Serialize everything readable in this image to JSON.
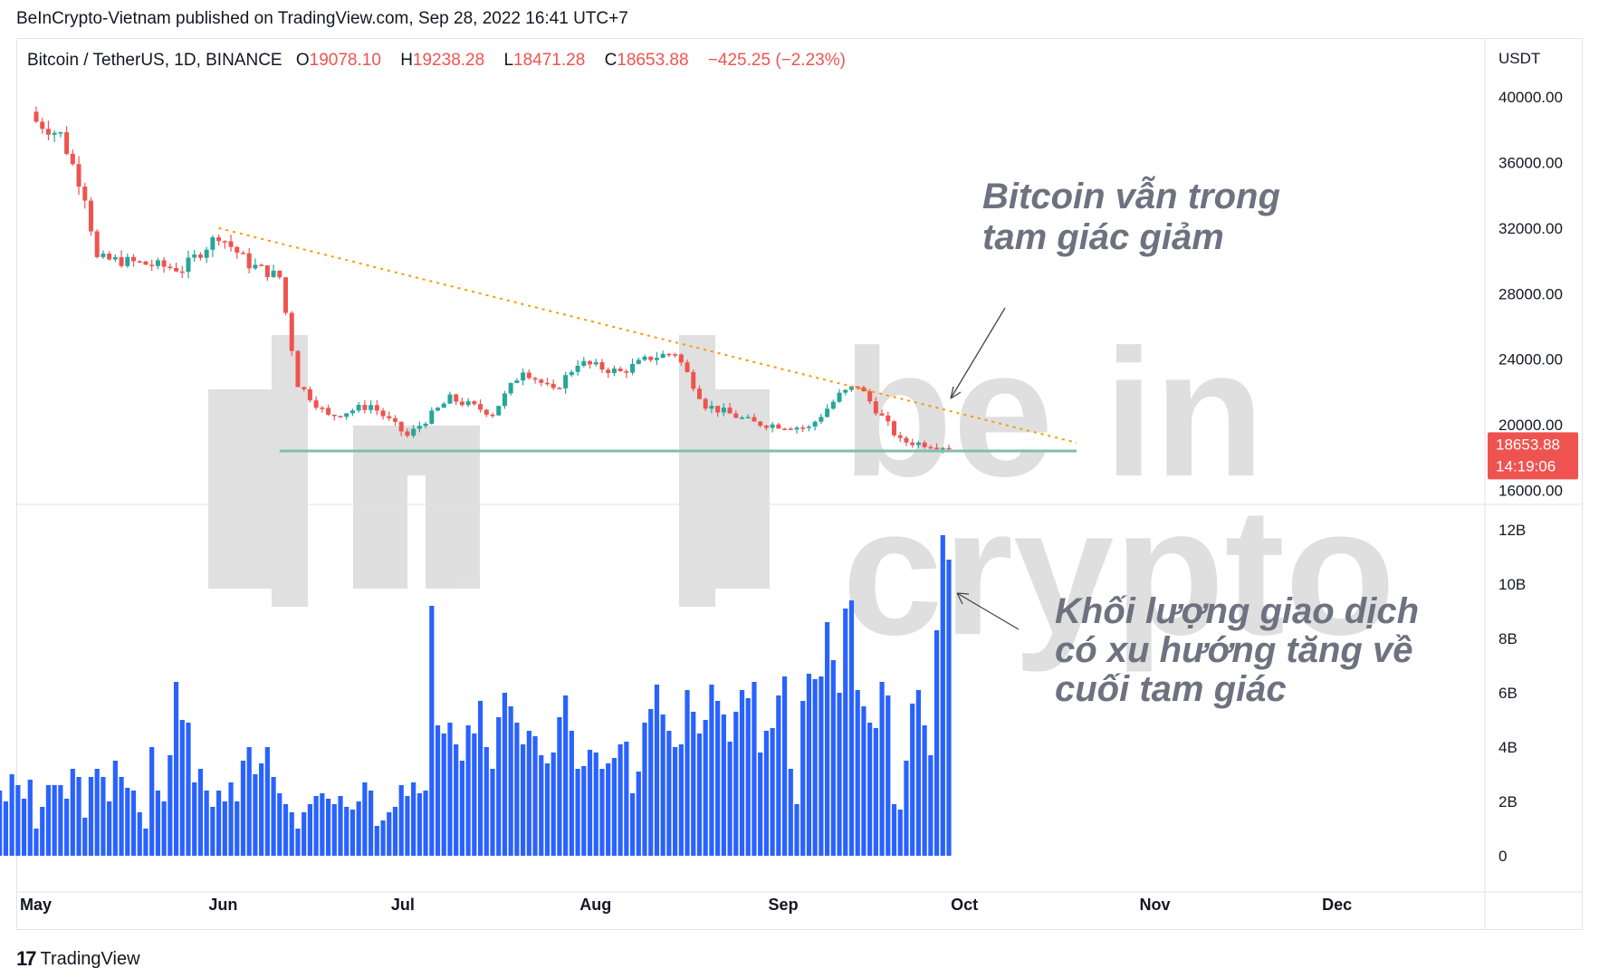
{
  "header": {
    "publisher_line": "BeInCrypto-Vietnam published on TradingView.com, Sep 28, 2022 16:41 UTC+7"
  },
  "legend": {
    "symbol": "Bitcoin / TetherUS, 1D, BINANCE",
    "o_label": "O",
    "o_value": "19078.10",
    "h_label": "H",
    "h_value": "19238.28",
    "l_label": "L",
    "l_value": "18471.28",
    "c_label": "C",
    "c_value": "18653.88",
    "change": "−425.25 (−2.23%)"
  },
  "price_axis": {
    "unit": "USDT",
    "ticks": [
      "40000.00",
      "36000.00",
      "32000.00",
      "28000.00",
      "24000.00",
      "20000.00",
      "16000.00"
    ],
    "last_price": "18653.88",
    "countdown": "14:19:06"
  },
  "volume_axis": {
    "ticks": [
      "12B",
      "10B",
      "8B",
      "6B",
      "4B",
      "2B",
      "0"
    ]
  },
  "time_axis": {
    "ticks": [
      "May",
      "Jun",
      "Jul",
      "Aug",
      "Sep",
      "Oct",
      "Nov",
      "Dec"
    ]
  },
  "annotations": {
    "triangle": [
      "Bitcoin vẫn trong",
      "tam giác giảm"
    ],
    "volume": [
      "Khối lượng giao dịch",
      "có xu hướng tăng về",
      "cuối tam giác"
    ]
  },
  "watermark": {
    "line1": "be in",
    "line2": "crypto"
  },
  "footer": {
    "brand": "TradingView",
    "logo": "tv-logo-icon"
  },
  "colors": {
    "up": "#26a69a",
    "down": "#ef5350",
    "volume": "#2962ff",
    "trendline": "#ff9800",
    "support": "#7fbfa8",
    "price_tag": "#ef5350"
  },
  "chart_data": {
    "type": "candlestick",
    "title": "Bitcoin / TetherUS, 1D, BINANCE",
    "price_range": [
      15800,
      41500
    ],
    "volume_range": [
      0,
      12500000000
    ],
    "close_anchors": {
      "dates": [
        "May 1",
        "May 5",
        "May 9",
        "May 11",
        "May 15",
        "May 25",
        "May 31",
        "Jun 5",
        "Jun 10",
        "Jun 13",
        "Jun 18",
        "Jun 25",
        "Jul 1",
        "Jul 8",
        "Jul 15",
        "Jul 20",
        "Jul 25",
        "Jul 29",
        "Aug 5",
        "Aug 10",
        "Aug 14",
        "Aug 19",
        "Aug 27",
        "Sep 5",
        "Sep 10",
        "Sep 13",
        "Sep 20",
        "Sep 28"
      ],
      "close": [
        38500,
        37700,
        34000,
        30100,
        30000,
        29500,
        31600,
        29800,
        29000,
        22500,
        20500,
        21200,
        19300,
        21600,
        20700,
        23400,
        22000,
        23800,
        23200,
        24100,
        24400,
        21200,
        20100,
        19800,
        21800,
        22400,
        19000,
        18653.88
      ]
    },
    "trendline": {
      "from": {
        "date": "May 31",
        "price": 32000
      },
      "to": {
        "date": "Oct 19",
        "price": 18900
      }
    },
    "support_level": 18400,
    "volume": {
      "start": "May 1",
      "end": "Sep 28",
      "unit": "B",
      "values": [
        2.3,
        2.0,
        2.1,
        2.7,
        2.3,
        3.5,
        2.6,
        6.4,
        5.3,
        6.5,
        5.8,
        3.0,
        2.4,
        2.0,
        3.0,
        2.6,
        2.1,
        2.8,
        1.0,
        1.8,
        2.6,
        2.6,
        2.6,
        2.1,
        3.2,
        2.9,
        1.4,
        2.9,
        3.2,
        2.9,
        2.0,
        3.5,
        2.9,
        2.5,
        2.4,
        1.6,
        1.0,
        4.0,
        2.4,
        2.0,
        3.7,
        6.4,
        5.0,
        4.9,
        2.7,
        3.2,
        2.4,
        1.8,
        2.4,
        2.0,
        2.7,
        2.0,
        3.5,
        4.0,
        3.0,
        3.4,
        4.0,
        2.9,
        2.3,
        1.9,
        1.6,
        1.0,
        1.6,
        1.9,
        2.2,
        2.3,
        2.1,
        1.9,
        2.2,
        1.8,
        1.7,
        2.0,
        2.7,
        2.4,
        1.1,
        1.3,
        1.6,
        1.8,
        2.6,
        2.2,
        2.7,
        2.3,
        2.4,
        9.2,
        4.8,
        4.5,
        4.9,
        4.1,
        3.5,
        4.8,
        4.5,
        5.7,
        4.0,
        3.2,
        5.1,
        6.0,
        5.5,
        4.9,
        4.1,
        4.6,
        4.4,
        3.7,
        3.4,
        3.8,
        5.1,
        5.9,
        4.6,
        3.2,
        3.3,
        3.9,
        3.8,
        3.2,
        3.4,
        3.6,
        4.1,
        4.2,
        2.3,
        3.1,
        4.9,
        5.4,
        6.3,
        5.2,
        4.6,
        4.0,
        4.1,
        6.1,
        5.3,
        4.5,
        5.0,
        6.3,
        5.7,
        5.2,
        4.2,
        5.3,
        6.1,
        5.8,
        6.4,
        3.8,
        4.6,
        4.7,
        5.9,
        6.6,
        3.2,
        1.9,
        5.7,
        6.7,
        6.5,
        6.6,
        8.6,
        7.2,
        6.0,
        9.1,
        9.4,
        6.1,
        5.5,
        4.9,
        4.7,
        6.4,
        5.9,
        1.9,
        1.7
      ],
      "note_last_days": [
        3.5,
        5.6,
        6.1,
        4.8,
        3.7,
        8.3,
        11.8,
        10.9
      ]
    }
  }
}
